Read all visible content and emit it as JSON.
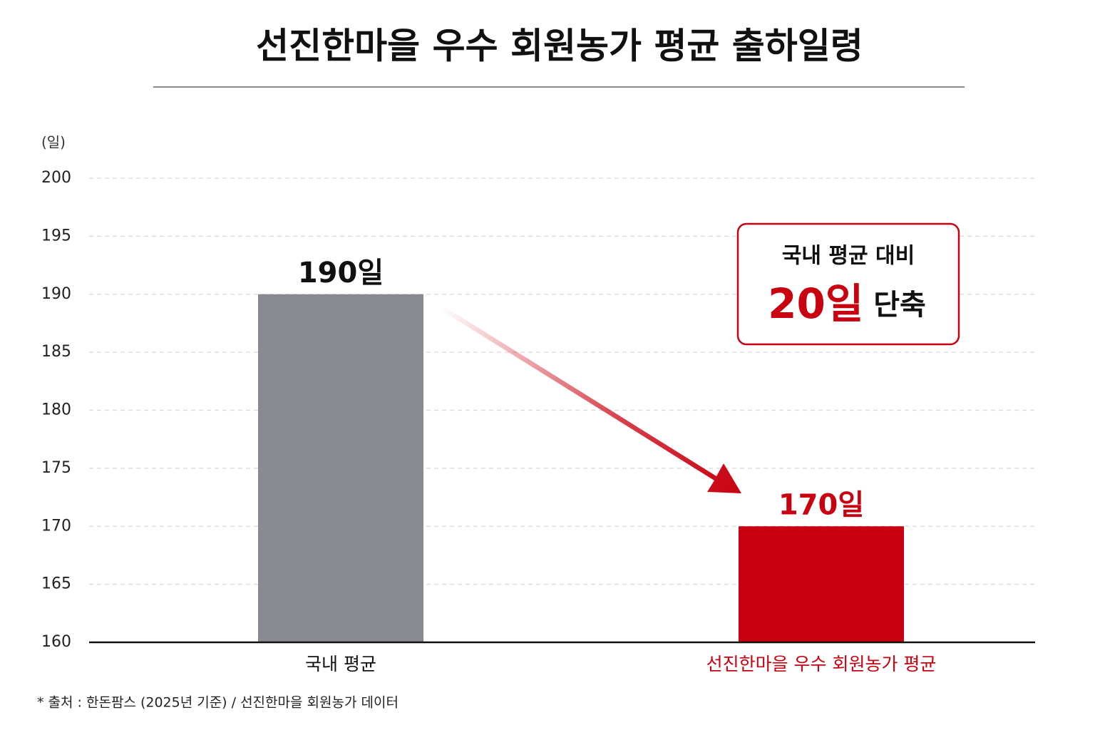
{
  "chart_data": {
    "type": "bar",
    "title": "선진한마을 우수 회원농가 평균 출하일령",
    "y_unit_label": "(일)",
    "categories": [
      "국내 평균",
      "선진한마을 우수 회원농가 평균"
    ],
    "values": [
      190,
      170
    ],
    "value_labels": [
      "190일",
      "170일"
    ],
    "colors": [
      "#898a8f",
      "#c8000f"
    ],
    "label_colors": [
      "#111111",
      "#c8000f"
    ],
    "ylim": [
      160,
      200
    ],
    "yticks": [
      160,
      165,
      170,
      175,
      180,
      185,
      190,
      195,
      200
    ],
    "grid": true,
    "callout": {
      "line1": "국내 평균 대비",
      "highlight": "20일",
      "suffix": "단축"
    },
    "footnote": "* 출처 : 한돈팜스 (2025년 기준) / 선진한마을 회원농가 데이터"
  }
}
